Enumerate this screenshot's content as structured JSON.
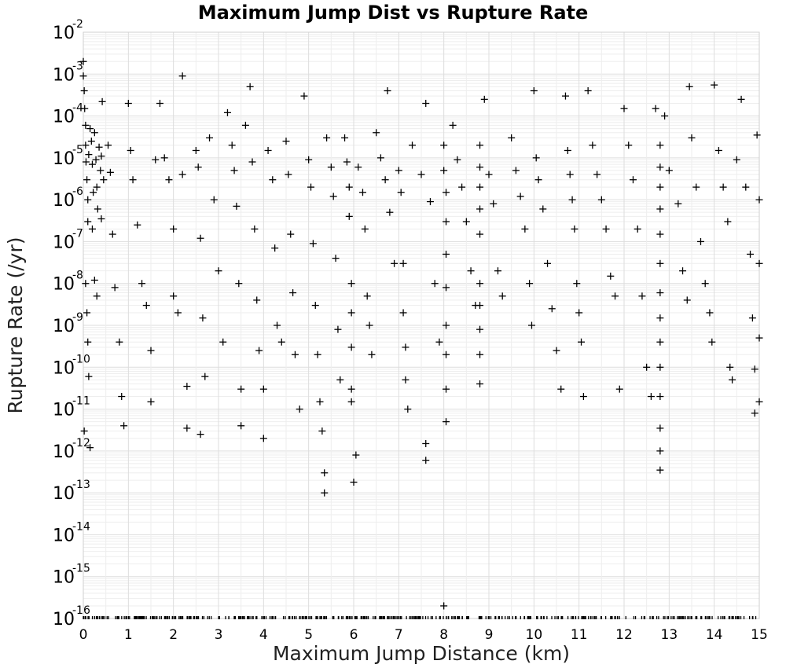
{
  "chart_data": {
    "type": "scatter",
    "title": "Maximum Jump Dist vs Rupture Rate",
    "xlabel": "Maximum Jump Distance (km)",
    "ylabel": "Rupture Rate (/yr)",
    "xlim": [
      0,
      15
    ],
    "ylim_exponent": [
      -16,
      -2
    ],
    "y_scale": "log",
    "grid": true,
    "marker": "+",
    "marker_color": "#000000",
    "x_ticks": [
      "0",
      "1",
      "2",
      "3",
      "4",
      "5",
      "6",
      "7",
      "8",
      "9",
      "10",
      "11",
      "12",
      "13",
      "14",
      "15"
    ],
    "y_ticks": [
      {
        "base": "10",
        "exp": "-16"
      },
      {
        "base": "10",
        "exp": "-15"
      },
      {
        "base": "10",
        "exp": "-14"
      },
      {
        "base": "10",
        "exp": "-13"
      },
      {
        "base": "10",
        "exp": "-12"
      },
      {
        "base": "10",
        "exp": "-11"
      },
      {
        "base": "10",
        "exp": "-10"
      },
      {
        "base": "10",
        "exp": "-9"
      },
      {
        "base": "10",
        "exp": "-8"
      },
      {
        "base": "10",
        "exp": "-7"
      },
      {
        "base": "10",
        "exp": "-6"
      },
      {
        "base": "10",
        "exp": "-5"
      },
      {
        "base": "10",
        "exp": "-4"
      },
      {
        "base": "10",
        "exp": "-3"
      },
      {
        "base": "10",
        "exp": "-2"
      }
    ],
    "points": [
      [
        0.0,
        0.002
      ],
      [
        0.0,
        0.0009
      ],
      [
        0.02,
        0.0004
      ],
      [
        0.03,
        0.00015
      ],
      [
        0.05,
        6e-05
      ],
      [
        0.05,
        2e-05
      ],
      [
        0.06,
        8e-06
      ],
      [
        0.08,
        3e-06
      ],
      [
        0.1,
        1e-06
      ],
      [
        0.1,
        3e-07
      ],
      [
        0.12,
        1.2e-05
      ],
      [
        0.15,
        5e-05
      ],
      [
        0.18,
        2.5e-05
      ],
      [
        0.2,
        7e-06
      ],
      [
        0.22,
        1.5e-06
      ],
      [
        0.25,
        4e-05
      ],
      [
        0.28,
        9e-06
      ],
      [
        0.3,
        2e-06
      ],
      [
        0.32,
        6e-07
      ],
      [
        0.35,
        1.8e-05
      ],
      [
        0.38,
        5e-06
      ],
      [
        0.4,
        1.1e-05
      ],
      [
        0.42,
        0.00022
      ],
      [
        0.45,
        3e-06
      ],
      [
        0.05,
        1e-08
      ],
      [
        0.08,
        2e-09
      ],
      [
        0.1,
        4e-10
      ],
      [
        0.12,
        6e-11
      ],
      [
        0.02,
        3e-12
      ],
      [
        0.15,
        1.2e-12
      ],
      [
        0.2,
        2e-07
      ],
      [
        0.25,
        1.2e-08
      ],
      [
        0.3,
        5e-09
      ],
      [
        0.4,
        3.5e-07
      ],
      [
        0.55,
        2e-05
      ],
      [
        0.6,
        4.5e-06
      ],
      [
        0.65,
        1.5e-07
      ],
      [
        0.7,
        8e-09
      ],
      [
        0.8,
        4e-10
      ],
      [
        0.85,
        2e-11
      ],
      [
        0.9,
        4e-12
      ],
      [
        1.0,
        0.0002
      ],
      [
        1.05,
        1.5e-05
      ],
      [
        1.1,
        3e-06
      ],
      [
        1.2,
        2.5e-07
      ],
      [
        1.3,
        1e-08
      ],
      [
        1.4,
        3e-09
      ],
      [
        1.5,
        2.5e-10
      ],
      [
        1.5,
        1.5e-11
      ],
      [
        1.6,
        9e-06
      ],
      [
        1.7,
        0.0002
      ],
      [
        1.8,
        1e-05
      ],
      [
        1.9,
        3e-06
      ],
      [
        2.0,
        2e-07
      ],
      [
        2.0,
        5e-09
      ],
      [
        2.1,
        2e-09
      ],
      [
        2.2,
        0.0009
      ],
      [
        2.2,
        4e-06
      ],
      [
        2.3,
        3.5e-11
      ],
      [
        2.3,
        3.5e-12
      ],
      [
        2.5,
        1.5e-05
      ],
      [
        2.55,
        6e-06
      ],
      [
        2.6,
        1.2e-07
      ],
      [
        2.6,
        2.5e-12
      ],
      [
        2.65,
        1.5e-09
      ],
      [
        2.7,
        6e-11
      ],
      [
        2.8,
        3e-05
      ],
      [
        2.9,
        1e-06
      ],
      [
        3.0,
        2e-08
      ],
      [
        3.1,
        4e-10
      ],
      [
        3.2,
        0.00012
      ],
      [
        3.3,
        2e-05
      ],
      [
        3.35,
        5e-06
      ],
      [
        3.4,
        7e-07
      ],
      [
        3.45,
        1e-08
      ],
      [
        3.5,
        3e-11
      ],
      [
        3.5,
        4e-12
      ],
      [
        3.6,
        6e-05
      ],
      [
        3.7,
        0.0005
      ],
      [
        3.75,
        8e-06
      ],
      [
        3.8,
        2e-07
      ],
      [
        3.85,
        4e-09
      ],
      [
        3.9,
        2.5e-10
      ],
      [
        4.0,
        3e-11
      ],
      [
        4.0,
        2e-12
      ],
      [
        4.1,
        1.5e-05
      ],
      [
        4.2,
        3e-06
      ],
      [
        4.25,
        7e-08
      ],
      [
        4.3,
        1e-09
      ],
      [
        4.4,
        4e-10
      ],
      [
        4.5,
        2.5e-05
      ],
      [
        4.55,
        4e-06
      ],
      [
        4.6,
        1.5e-07
      ],
      [
        4.65,
        6e-09
      ],
      [
        4.7,
        2e-10
      ],
      [
        4.8,
        1e-11
      ],
      [
        4.9,
        0.0003
      ],
      [
        5.0,
        9e-06
      ],
      [
        5.05,
        2e-06
      ],
      [
        5.1,
        9e-08
      ],
      [
        5.15,
        3e-09
      ],
      [
        5.2,
        2e-10
      ],
      [
        5.25,
        1.5e-11
      ],
      [
        5.3,
        3e-12
      ],
      [
        5.35,
        3e-13
      ],
      [
        5.35,
        1e-13
      ],
      [
        5.4,
        3e-05
      ],
      [
        5.5,
        6e-06
      ],
      [
        5.55,
        1.2e-06
      ],
      [
        5.6,
        4e-08
      ],
      [
        5.65,
        8e-10
      ],
      [
        5.7,
        5e-11
      ],
      [
        5.8,
        3e-05
      ],
      [
        5.85,
        8e-06
      ],
      [
        5.9,
        2e-06
      ],
      [
        5.9,
        4e-07
      ],
      [
        5.95,
        1e-08
      ],
      [
        5.95,
        2e-09
      ],
      [
        5.95,
        3e-10
      ],
      [
        5.95,
        3e-11
      ],
      [
        5.95,
        1.5e-11
      ],
      [
        6.0,
        1.8e-13
      ],
      [
        6.05,
        8e-13
      ],
      [
        6.1,
        6e-06
      ],
      [
        6.2,
        1.5e-06
      ],
      [
        6.25,
        2e-07
      ],
      [
        6.3,
        5e-09
      ],
      [
        6.35,
        1e-09
      ],
      [
        6.4,
        2e-10
      ],
      [
        6.5,
        4e-05
      ],
      [
        6.6,
        1e-05
      ],
      [
        6.7,
        3e-06
      ],
      [
        6.75,
        0.0004
      ],
      [
        6.8,
        5e-07
      ],
      [
        6.9,
        3e-08
      ],
      [
        7.0,
        5e-06
      ],
      [
        7.05,
        1.5e-06
      ],
      [
        7.1,
        3e-08
      ],
      [
        7.1,
        2e-09
      ],
      [
        7.15,
        3e-10
      ],
      [
        7.15,
        5e-11
      ],
      [
        7.2,
        1e-11
      ],
      [
        7.3,
        2e-05
      ],
      [
        7.5,
        4e-06
      ],
      [
        7.6,
        0.0002
      ],
      [
        7.6,
        1.5e-12
      ],
      [
        7.6,
        6e-13
      ],
      [
        7.7,
        9e-07
      ],
      [
        7.8,
        1e-08
      ],
      [
        7.9,
        4e-10
      ],
      [
        8.0,
        2e-05
      ],
      [
        8.0,
        5e-06
      ],
      [
        8.05,
        1.5e-06
      ],
      [
        8.05,
        3e-07
      ],
      [
        8.05,
        5e-08
      ],
      [
        8.05,
        8e-09
      ],
      [
        8.05,
        1e-09
      ],
      [
        8.05,
        2e-10
      ],
      [
        8.05,
        3e-11
      ],
      [
        8.05,
        5e-12
      ],
      [
        8.0,
        2e-16
      ],
      [
        8.2,
        6e-05
      ],
      [
        8.3,
        9e-06
      ],
      [
        8.4,
        2e-06
      ],
      [
        8.5,
        3e-07
      ],
      [
        8.6,
        2e-08
      ],
      [
        8.7,
        3e-09
      ],
      [
        8.8,
        2e-05
      ],
      [
        8.8,
        6e-06
      ],
      [
        8.8,
        2e-06
      ],
      [
        8.8,
        6e-07
      ],
      [
        8.8,
        1.5e-07
      ],
      [
        8.8,
        1e-08
      ],
      [
        8.8,
        3e-09
      ],
      [
        8.8,
        8e-10
      ],
      [
        8.8,
        2e-10
      ],
      [
        8.8,
        4e-11
      ],
      [
        8.9,
        0.00025
      ],
      [
        9.0,
        4e-06
      ],
      [
        9.1,
        8e-07
      ],
      [
        9.2,
        2e-08
      ],
      [
        9.3,
        5e-09
      ],
      [
        9.5,
        3e-05
      ],
      [
        9.6,
        5e-06
      ],
      [
        9.7,
        1.2e-06
      ],
      [
        9.8,
        2e-07
      ],
      [
        9.9,
        1e-08
      ],
      [
        9.95,
        1e-09
      ],
      [
        10.0,
        0.0004
      ],
      [
        10.05,
        1e-05
      ],
      [
        10.1,
        3e-06
      ],
      [
        10.2,
        6e-07
      ],
      [
        10.3,
        3e-08
      ],
      [
        10.4,
        2.5e-09
      ],
      [
        10.5,
        2.5e-10
      ],
      [
        10.6,
        3e-11
      ],
      [
        10.7,
        0.0003
      ],
      [
        10.75,
        1.5e-05
      ],
      [
        10.8,
        4e-06
      ],
      [
        10.85,
        1e-06
      ],
      [
        10.9,
        2e-07
      ],
      [
        10.95,
        1e-08
      ],
      [
        11.0,
        2e-09
      ],
      [
        11.05,
        4e-10
      ],
      [
        11.1,
        2e-11
      ],
      [
        11.2,
        0.0004
      ],
      [
        11.3,
        2e-05
      ],
      [
        11.4,
        4e-06
      ],
      [
        11.5,
        1e-06
      ],
      [
        11.6,
        2e-07
      ],
      [
        11.7,
        1.5e-08
      ],
      [
        11.8,
        5e-09
      ],
      [
        11.9,
        3e-11
      ],
      [
        12.0,
        0.00015
      ],
      [
        12.1,
        2e-05
      ],
      [
        12.2,
        3e-06
      ],
      [
        12.3,
        2e-07
      ],
      [
        12.4,
        5e-09
      ],
      [
        12.5,
        1e-10
      ],
      [
        12.6,
        2e-11
      ],
      [
        12.7,
        0.00015
      ],
      [
        12.8,
        2e-05
      ],
      [
        12.8,
        6e-06
      ],
      [
        12.8,
        2e-06
      ],
      [
        12.8,
        6e-07
      ],
      [
        12.8,
        1.5e-07
      ],
      [
        12.8,
        3e-08
      ],
      [
        12.8,
        6e-09
      ],
      [
        12.8,
        1.5e-09
      ],
      [
        12.8,
        4e-10
      ],
      [
        12.8,
        1e-10
      ],
      [
        12.8,
        2e-11
      ],
      [
        12.8,
        3.5e-12
      ],
      [
        12.8,
        1e-12
      ],
      [
        12.8,
        3.5e-13
      ],
      [
        12.9,
        0.0001
      ],
      [
        13.0,
        5e-06
      ],
      [
        13.2,
        8e-07
      ],
      [
        13.3,
        2e-08
      ],
      [
        13.4,
        4e-09
      ],
      [
        13.45,
        0.0005
      ],
      [
        13.5,
        3e-05
      ],
      [
        13.6,
        2e-06
      ],
      [
        13.7,
        1e-07
      ],
      [
        13.8,
        1e-08
      ],
      [
        13.9,
        2e-09
      ],
      [
        13.95,
        4e-10
      ],
      [
        14.0,
        0.00055
      ],
      [
        14.1,
        1.5e-05
      ],
      [
        14.2,
        2e-06
      ],
      [
        14.3,
        3e-07
      ],
      [
        14.35,
        1e-10
      ],
      [
        14.4,
        5e-11
      ],
      [
        14.5,
        9e-06
      ],
      [
        14.6,
        0.00025
      ],
      [
        14.7,
        2e-06
      ],
      [
        14.8,
        5e-08
      ],
      [
        14.85,
        1.5e-09
      ],
      [
        14.9,
        9e-11
      ],
      [
        14.9,
        8e-12
      ],
      [
        14.95,
        3.5e-05
      ],
      [
        15.0,
        1e-06
      ],
      [
        15.0,
        3e-08
      ],
      [
        15.0,
        5e-10
      ],
      [
        15.0,
        1.5e-11
      ]
    ]
  }
}
